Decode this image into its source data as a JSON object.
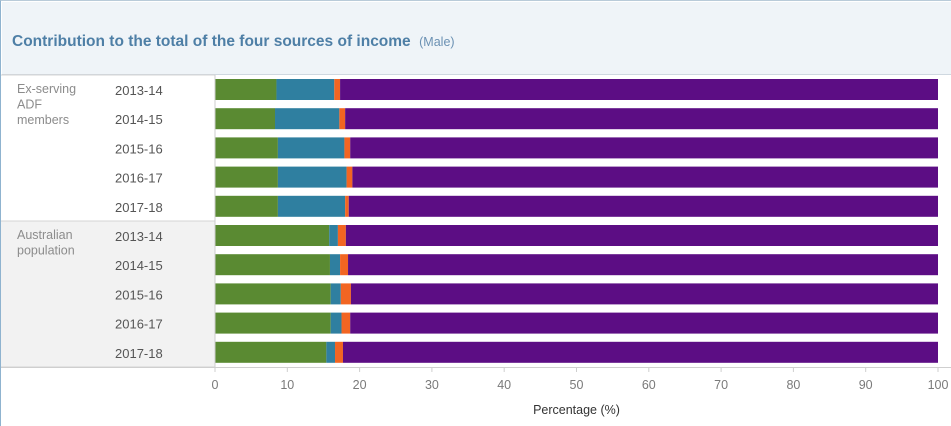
{
  "title": "Contribution to the total of the four sources of income",
  "subtitle": "(Male)",
  "chart_data": {
    "type": "bar",
    "orientation": "horizontal",
    "stacked": true,
    "xlabel": "Percentage (%)",
    "xlim": [
      0,
      100
    ],
    "xticks": [
      0,
      10,
      20,
      30,
      40,
      50,
      60,
      70,
      80,
      90,
      100
    ],
    "groups": [
      {
        "label": [
          "Ex-serving",
          "ADF",
          "members"
        ],
        "rows": [
          {
            "year": "2013-14",
            "values": [
              8.5,
              8.0,
              0.8,
              82.7
            ]
          },
          {
            "year": "2014-15",
            "values": [
              8.3,
              8.9,
              0.8,
              82.0
            ]
          },
          {
            "year": "2015-16",
            "values": [
              8.7,
              9.2,
              0.8,
              81.3
            ]
          },
          {
            "year": "2016-17",
            "values": [
              8.7,
              9.5,
              0.8,
              81.0
            ]
          },
          {
            "year": "2017-18",
            "values": [
              8.7,
              9.3,
              0.5,
              81.5
            ]
          }
        ]
      },
      {
        "label": [
          "Australian",
          "population"
        ],
        "rows": [
          {
            "year": "2013-14",
            "values": [
              15.8,
              1.2,
              1.1,
              81.9
            ]
          },
          {
            "year": "2014-15",
            "values": [
              15.9,
              1.4,
              1.1,
              81.6
            ]
          },
          {
            "year": "2015-16",
            "values": [
              16.0,
              1.4,
              1.4,
              81.2
            ]
          },
          {
            "year": "2016-17",
            "values": [
              16.0,
              1.5,
              1.2,
              81.3
            ]
          },
          {
            "year": "2017-18",
            "values": [
              15.4,
              1.2,
              1.1,
              82.3
            ]
          }
        ]
      }
    ],
    "segment_colors": [
      "#5a8a32",
      "#2f7fa0",
      "#f26522",
      "#5c0d84"
    ]
  }
}
